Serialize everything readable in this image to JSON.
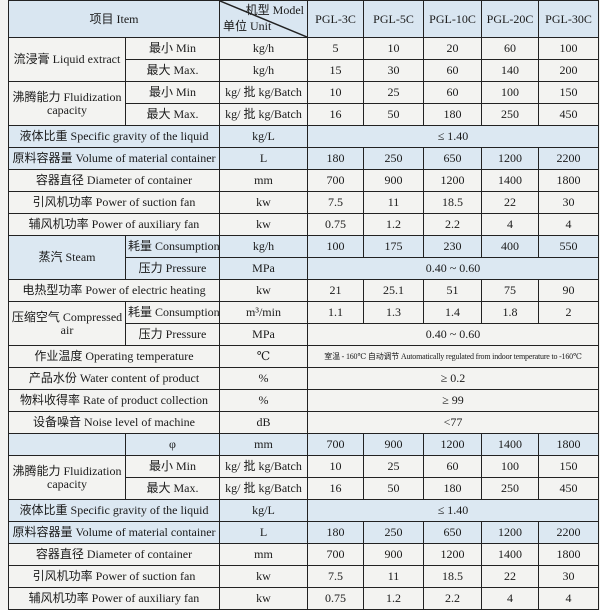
{
  "header": {
    "item": "项目 Item",
    "model": "机型 Model",
    "unit": "单位 Unit",
    "models": [
      "PGL-3C",
      "PGL-5C",
      "PGL-10C",
      "PGL-20C",
      "PGL-30C"
    ]
  },
  "highlight_color": "#dce8f2",
  "rows": [
    {
      "group": "流浸膏 Liquid extract",
      "subs": [
        {
          "sub": "最小 Min",
          "unit": "kg/h",
          "values": [
            "5",
            "10",
            "20",
            "60",
            "100"
          ]
        },
        {
          "sub": "最大 Max.",
          "unit": "kg/h",
          "values": [
            "15",
            "30",
            "60",
            "140",
            "200"
          ]
        }
      ]
    },
    {
      "group": "沸腾能力 Fluidization capacity",
      "subs": [
        {
          "sub": "最小 Min",
          "unit": "kg/ 批 kg/Batch",
          "values": [
            "10",
            "25",
            "60",
            "100",
            "150"
          ]
        },
        {
          "sub": "最大 Max.",
          "unit": "kg/ 批 kg/Batch",
          "values": [
            "16",
            "50",
            "180",
            "250",
            "450"
          ]
        }
      ]
    },
    {
      "item": "液体比重 Specific gravity of the liquid",
      "unit": "kg/L",
      "value": "≤ 1.40",
      "highlight": true
    },
    {
      "item": "原料容器量 Volume of material container",
      "unit": "L",
      "values": [
        "180",
        "250",
        "650",
        "1200",
        "2200"
      ],
      "highlight": true
    },
    {
      "item": "容器直径 Diameter of container",
      "unit": "mm",
      "values": [
        "700",
        "900",
        "1200",
        "1400",
        "1800"
      ]
    },
    {
      "item": "引风机功率 Power of suction fan",
      "unit": "kw",
      "values": [
        "7.5",
        "11",
        "18.5",
        "22",
        "30"
      ]
    },
    {
      "item": "辅风机功率 Power of auxiliary fan",
      "unit": "kw",
      "values": [
        "0.75",
        "1.2",
        "2.2",
        "4",
        "4"
      ]
    },
    {
      "group": "蒸汽 Steam",
      "highlight": true,
      "subs": [
        {
          "sub": "耗量 Consumption",
          "unit": "kg/h",
          "values": [
            "100",
            "175",
            "230",
            "400",
            "550"
          ]
        },
        {
          "sub": "压力 Pressure",
          "unit": "MPa",
          "value": "0.40 ~ 0.60"
        }
      ]
    },
    {
      "item": "电热型功率 Power of electric heating",
      "unit": "kw",
      "values": [
        "21",
        "25.1",
        "51",
        "75",
        "90"
      ]
    },
    {
      "group": "压缩空气 Compressed air",
      "subs": [
        {
          "sub": "耗量 Consumption",
          "unit": "m³/min",
          "values": [
            "1.1",
            "1.3",
            "1.4",
            "1.8",
            "2"
          ]
        },
        {
          "sub": "压力 Pressure",
          "unit": "MPa",
          "value": "0.40 ~ 0.60"
        }
      ]
    },
    {
      "item": "作业温度 Operating temperature",
      "unit": "℃",
      "value": "室温 - 160℃ 自动调节 Automatically regulated from indoor temperature to -160℃",
      "small": true
    },
    {
      "item": "产品水份 Water content of product",
      "unit": "%",
      "value": "≥ 0.2"
    },
    {
      "item": "物料收得率 Rate of product collection",
      "unit": "%",
      "value": "≥ 99"
    },
    {
      "item": "设备噪音 Noise level of machine",
      "unit": "dB",
      "value": "<77"
    },
    {
      "group": "",
      "highlight": true,
      "subs": [
        {
          "sub": "φ",
          "unit": "mm",
          "values": [
            "700",
            "900",
            "1200",
            "1400",
            "1800"
          ]
        }
      ]
    },
    {
      "group": "沸腾能力 Fluidization capacity",
      "subs": [
        {
          "sub": "最小 Min",
          "unit": "kg/ 批 kg/Batch",
          "values": [
            "10",
            "25",
            "60",
            "100",
            "150"
          ]
        },
        {
          "sub": "最大 Max.",
          "unit": "kg/ 批 kg/Batch",
          "values": [
            "16",
            "50",
            "180",
            "250",
            "450"
          ]
        }
      ]
    },
    {
      "item": "液体比重 Specific gravity of the liquid",
      "unit": "kg/L",
      "value": "≤ 1.40",
      "highlight": true
    },
    {
      "item": "原料容器量 Volume of material container",
      "unit": "L",
      "values": [
        "180",
        "250",
        "650",
        "1200",
        "2200"
      ],
      "highlight": true
    },
    {
      "item": "容器直径 Diameter of container",
      "unit": "mm",
      "values": [
        "700",
        "900",
        "1200",
        "1400",
        "1800"
      ]
    },
    {
      "item": "引风机功率 Power of suction fan",
      "unit": "kw",
      "values": [
        "7.5",
        "11",
        "18.5",
        "22",
        "30"
      ]
    },
    {
      "item": "辅风机功率 Power of auxiliary fan",
      "unit": "kw",
      "values": [
        "0.75",
        "1.2",
        "2.2",
        "4",
        "4"
      ]
    }
  ]
}
